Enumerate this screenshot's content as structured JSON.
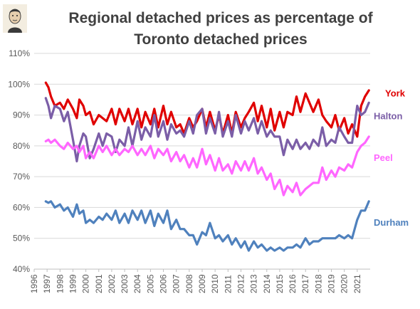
{
  "chart_data": {
    "type": "line",
    "title_lines": [
      "Regional detached prices as percentage of",
      "Toronto detached prices"
    ],
    "xlabel": "",
    "ylabel": "",
    "ylim": [
      40,
      110
    ],
    "yticks": [
      "40%",
      "50%",
      "60%",
      "70%",
      "80%",
      "90%",
      "100%",
      "110%"
    ],
    "xlim": [
      1996,
      2022
    ],
    "xticks": [
      "1996",
      "1997",
      "1998",
      "1999",
      "2000",
      "2001",
      "2002",
      "2003",
      "2004",
      "2005",
      "2006",
      "2007",
      "2008",
      "2009",
      "2010",
      "2011",
      "2012",
      "2013",
      "2014",
      "2015",
      "2016",
      "2017",
      "2018",
      "2019",
      "2020",
      "2021"
    ],
    "grid": "horizontal",
    "legend": "inline-right",
    "series": [
      {
        "name": "York",
        "color": "#e00000",
        "x": [
          1996.9,
          1997.1,
          1997.3,
          1997.6,
          1998.0,
          1998.3,
          1998.6,
          1999.0,
          1999.3,
          1999.5,
          1999.8,
          2000.0,
          2000.3,
          2000.6,
          2001.0,
          2001.3,
          2001.6,
          2002.0,
          2002.3,
          2002.6,
          2003.0,
          2003.3,
          2003.6,
          2004.0,
          2004.3,
          2004.6,
          2005.0,
          2005.3,
          2005.6,
          2006.0,
          2006.3,
          2006.6,
          2007.0,
          2007.3,
          2007.6,
          2008.0,
          2008.3,
          2008.6,
          2009.0,
          2009.3,
          2009.6,
          2010.0,
          2010.3,
          2010.6,
          2011.0,
          2011.3,
          2011.6,
          2012.0,
          2012.3,
          2012.6,
          2013.0,
          2013.3,
          2013.6,
          2014.0,
          2014.3,
          2014.6,
          2015.0,
          2015.3,
          2015.6,
          2016.0,
          2016.3,
          2016.6,
          2017.0,
          2017.3,
          2017.6,
          2018.0,
          2018.3,
          2018.6,
          2019.0,
          2019.3,
          2019.6,
          2020.0,
          2020.3,
          2020.6,
          2021.0,
          2021.3,
          2021.6,
          2021.9
        ],
        "y": [
          100.5,
          99,
          96,
          93,
          94,
          92,
          95,
          92,
          89,
          95,
          93,
          90,
          91,
          87,
          90,
          89,
          88,
          92,
          87,
          92,
          88,
          92,
          87,
          92,
          86,
          91,
          87,
          92,
          86,
          93,
          87,
          91,
          86,
          87,
          84,
          89,
          86,
          88,
          92,
          86,
          91,
          85,
          90,
          84,
          90,
          84,
          91,
          86,
          89,
          91,
          94,
          88,
          93,
          86,
          92,
          85,
          91,
          86,
          91,
          90,
          96,
          91,
          97,
          94,
          91,
          95,
          90,
          88,
          86,
          90,
          85,
          89,
          84,
          87,
          83,
          93,
          96,
          98
        ]
      },
      {
        "name": "Halton",
        "color": "#7b5ea7",
        "x": [
          1996.9,
          1997.1,
          1997.3,
          1997.6,
          1998.0,
          1998.3,
          1998.6,
          1999.0,
          1999.3,
          1999.5,
          1999.8,
          2000.0,
          2000.3,
          2000.6,
          2001.0,
          2001.3,
          2001.6,
          2002.0,
          2002.3,
          2002.6,
          2003.0,
          2003.3,
          2003.6,
          2004.0,
          2004.3,
          2004.6,
          2005.0,
          2005.3,
          2005.6,
          2006.0,
          2006.3,
          2006.6,
          2007.0,
          2007.3,
          2007.6,
          2008.0,
          2008.3,
          2008.6,
          2009.0,
          2009.3,
          2009.6,
          2010.0,
          2010.3,
          2010.6,
          2011.0,
          2011.3,
          2011.6,
          2012.0,
          2012.3,
          2012.6,
          2013.0,
          2013.3,
          2013.6,
          2014.0,
          2014.3,
          2014.6,
          2015.0,
          2015.3,
          2015.6,
          2016.0,
          2016.3,
          2016.6,
          2017.0,
          2017.3,
          2017.6,
          2018.0,
          2018.3,
          2018.6,
          2019.0,
          2019.3,
          2019.6,
          2020.0,
          2020.3,
          2020.6,
          2021.0,
          2021.3,
          2021.6,
          2021.9
        ],
        "y": [
          95.5,
          93,
          89,
          93,
          92,
          88,
          91,
          82,
          75,
          80,
          84,
          83,
          76,
          79,
          84,
          80,
          84,
          83,
          78,
          82,
          80,
          86,
          80,
          88,
          82,
          86,
          83,
          90,
          83,
          88,
          82,
          87,
          84,
          85,
          83,
          88,
          84,
          90,
          92,
          84,
          89,
          84,
          91,
          83,
          88,
          83,
          90,
          84,
          88,
          85,
          89,
          84,
          88,
          83,
          85,
          83,
          83,
          77,
          82,
          79,
          82,
          79,
          81,
          79,
          82,
          80,
          86,
          80,
          82,
          81,
          86,
          83,
          81,
          81,
          93,
          90,
          91,
          94
        ]
      },
      {
        "name": "Peel",
        "color": "#ff66ff",
        "x": [
          1996.9,
          1997.1,
          1997.3,
          1997.6,
          1998.0,
          1998.3,
          1998.6,
          1999.0,
          1999.3,
          1999.5,
          1999.8,
          2000.0,
          2000.3,
          2000.6,
          2001.0,
          2001.3,
          2001.6,
          2002.0,
          2002.3,
          2002.6,
          2003.0,
          2003.3,
          2003.6,
          2004.0,
          2004.3,
          2004.6,
          2005.0,
          2005.3,
          2005.6,
          2006.0,
          2006.3,
          2006.6,
          2007.0,
          2007.3,
          2007.6,
          2008.0,
          2008.3,
          2008.6,
          2009.0,
          2009.3,
          2009.6,
          2010.0,
          2010.3,
          2010.6,
          2011.0,
          2011.3,
          2011.6,
          2012.0,
          2012.3,
          2012.6,
          2013.0,
          2013.3,
          2013.6,
          2014.0,
          2014.3,
          2014.6,
          2015.0,
          2015.3,
          2015.6,
          2016.0,
          2016.3,
          2016.6,
          2017.0,
          2017.3,
          2017.6,
          2018.0,
          2018.3,
          2018.6,
          2019.0,
          2019.3,
          2019.6,
          2020.0,
          2020.3,
          2020.6,
          2021.0,
          2021.3,
          2021.6,
          2021.9
        ],
        "y": [
          81.5,
          82,
          81,
          82,
          80,
          79,
          81,
          79,
          80,
          78,
          80,
          76,
          78,
          76,
          80,
          78,
          80,
          77,
          79,
          77,
          79,
          78,
          80,
          77,
          79,
          77,
          80,
          76,
          79,
          77,
          79,
          75,
          78,
          75,
          77,
          73,
          76,
          73,
          79,
          74,
          77,
          72,
          76,
          72,
          74,
          71,
          75,
          72,
          75,
          72,
          76,
          71,
          73,
          69,
          71,
          66,
          69,
          64,
          67,
          65,
          68,
          64,
          66,
          67,
          68,
          68,
          73,
          69,
          72,
          70,
          73,
          72,
          74,
          73,
          78,
          80,
          81,
          83
        ]
      },
      {
        "name": "Durham",
        "color": "#4f81bd",
        "x": [
          1996.9,
          1997.1,
          1997.3,
          1997.6,
          1998.0,
          1998.3,
          1998.6,
          1999.0,
          1999.3,
          1999.5,
          1999.8,
          2000.0,
          2000.3,
          2000.6,
          2001.0,
          2001.3,
          2001.6,
          2002.0,
          2002.3,
          2002.6,
          2003.0,
          2003.3,
          2003.6,
          2004.0,
          2004.3,
          2004.6,
          2005.0,
          2005.3,
          2005.6,
          2006.0,
          2006.3,
          2006.6,
          2007.0,
          2007.3,
          2007.6,
          2008.0,
          2008.3,
          2008.6,
          2009.0,
          2009.3,
          2009.6,
          2010.0,
          2010.3,
          2010.6,
          2011.0,
          2011.3,
          2011.6,
          2012.0,
          2012.3,
          2012.6,
          2013.0,
          2013.3,
          2013.6,
          2014.0,
          2014.3,
          2014.6,
          2015.0,
          2015.3,
          2015.6,
          2016.0,
          2016.3,
          2016.6,
          2017.0,
          2017.3,
          2017.6,
          2018.0,
          2018.3,
          2018.6,
          2019.0,
          2019.3,
          2019.6,
          2020.0,
          2020.3,
          2020.6,
          2021.0,
          2021.3,
          2021.6,
          2021.9
        ],
        "y": [
          62,
          61.5,
          62,
          60,
          61,
          59,
          60,
          57,
          61,
          58,
          59,
          55,
          56,
          55,
          57,
          56,
          58,
          56,
          59,
          55,
          58,
          55,
          59,
          56,
          59,
          55,
          59,
          54,
          58,
          55,
          59,
          53,
          56,
          53,
          53,
          51,
          51,
          48,
          52,
          51,
          55,
          50,
          51,
          49,
          51,
          48,
          50,
          47,
          49,
          46,
          49,
          47,
          48,
          46,
          47,
          46,
          47,
          46,
          47,
          47,
          48,
          47,
          50,
          48,
          49,
          49,
          50,
          50,
          50,
          50,
          51,
          50,
          51,
          50,
          56,
          59,
          59,
          62
        ]
      }
    ]
  }
}
